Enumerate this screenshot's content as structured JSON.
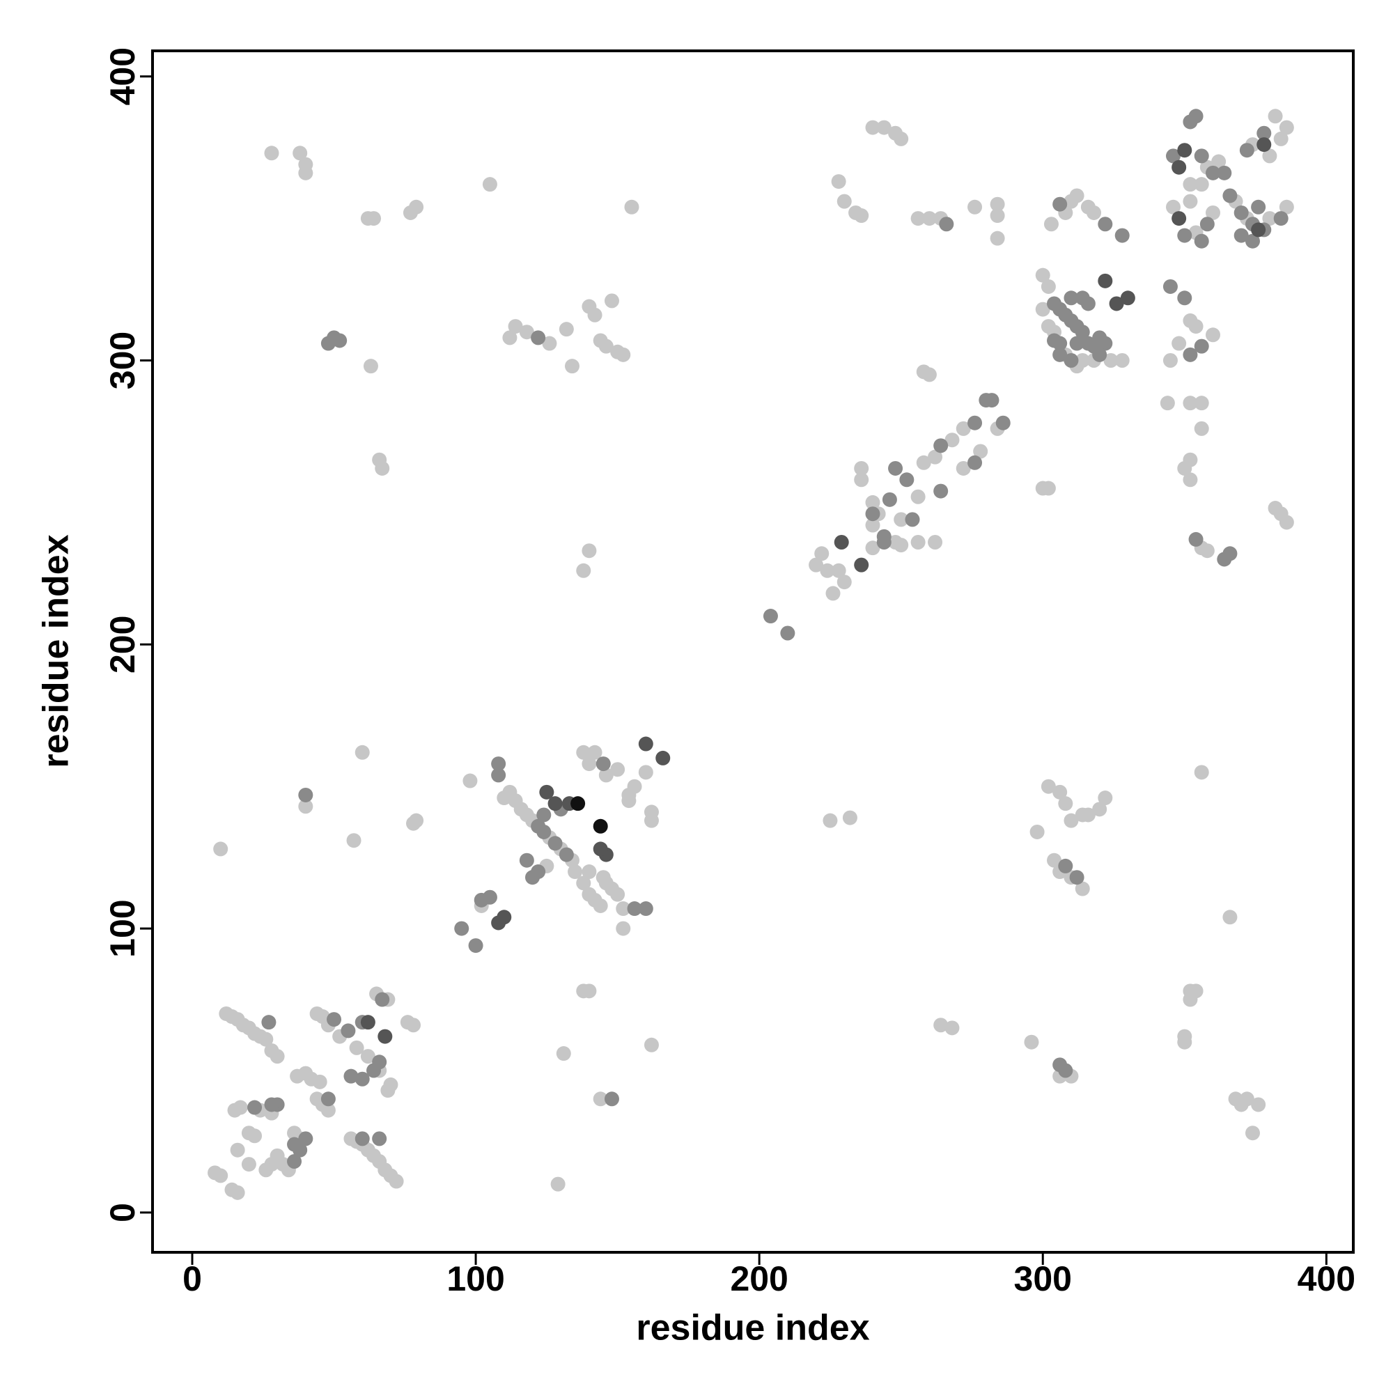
{
  "chart_data": {
    "type": "scatter",
    "x_label": "residue index",
    "y_label": "residue index",
    "xlim": [
      -14,
      409.5
    ],
    "ylim": [
      -14,
      409
    ],
    "xticks": [
      0,
      100,
      200,
      300,
      400
    ],
    "yticks": [
      0,
      100,
      200,
      300,
      400
    ],
    "grid": false,
    "series": [
      {
        "color": "#c6c6c6",
        "x": [
          12,
          14,
          16,
          18,
          20,
          22,
          24,
          26,
          28,
          30,
          44,
          46,
          48,
          52,
          58,
          62,
          66,
          70,
          69,
          65,
          69,
          78,
          76,
          37,
          40,
          42,
          45,
          44,
          46,
          48,
          36,
          38,
          30,
          28,
          26,
          20,
          22,
          15,
          17,
          24,
          28,
          56,
          58,
          60,
          62,
          64,
          66,
          68,
          70,
          72,
          8,
          10,
          14,
          16,
          20,
          16,
          34,
          32,
          10,
          40,
          57,
          60,
          78,
          79,
          28,
          38,
          40,
          40,
          62,
          64,
          63,
          66,
          67,
          77,
          79,
          105,
          155,
          102,
          98,
          110,
          112,
          114,
          116,
          118,
          120,
          126,
          130,
          134,
          138,
          142,
          140,
          146,
          150,
          154,
          156,
          160,
          162,
          162,
          154,
          125,
          135,
          138,
          140,
          142,
          144,
          146,
          148,
          150,
          152,
          152,
          140,
          145,
          138,
          140,
          131,
          129,
          144,
          162,
          138,
          140,
          132,
          140,
          142,
          148,
          144,
          150,
          146,
          152,
          114,
          118,
          126,
          112,
          134,
          220,
          224,
          222,
          226,
          230,
          228,
          240,
          242,
          240,
          248,
          250,
          236,
          236,
          250,
          256,
          262,
          258,
          262,
          268,
          272,
          284,
          278,
          272,
          256,
          240,
          225,
          232,
          264,
          268,
          258,
          260,
          260,
          264,
          256,
          276,
          284,
          284,
          284,
          228,
          230,
          234,
          236,
          244,
          248,
          250,
          240,
          300,
          302,
          300,
          302,
          300,
          302,
          304,
          308,
          312,
          314,
          318,
          324,
          328,
          303,
          308,
          310,
          312,
          316,
          318,
          296,
          298,
          302,
          306,
          308,
          310,
          304,
          306,
          310,
          314,
          314,
          316,
          320,
          322,
          306,
          310,
          352,
          356,
          358,
          362,
          346,
          352,
          354,
          360,
          368,
          372,
          380,
          386,
          374,
          382,
          384,
          386,
          380,
          352,
          354,
          348,
          360,
          345,
          344,
          352,
          356,
          356,
          350,
          352,
          352,
          356,
          358,
          382,
          384,
          386,
          352,
          354,
          352,
          350,
          350,
          366,
          356,
          368,
          370,
          372,
          376,
          374
        ],
        "values": [
          70,
          69,
          68,
          66,
          65,
          63,
          62,
          61,
          57,
          55,
          70,
          69,
          66,
          62,
          58,
          55,
          50,
          45,
          43,
          77,
          75,
          66,
          67,
          48,
          49,
          47,
          46,
          40,
          38,
          36,
          28,
          26,
          20,
          17,
          15,
          28,
          27,
          36,
          37,
          36,
          35,
          26,
          25,
          24,
          22,
          20,
          18,
          15,
          13,
          11,
          14,
          13,
          8,
          7,
          17,
          22,
          15,
          17,
          128,
          143,
          131,
          162,
          137,
          138,
          373,
          373,
          369,
          366,
          350,
          350,
          298,
          265,
          262,
          352,
          354,
          362,
          354,
          108,
          152,
          146,
          148,
          145,
          142,
          140,
          138,
          132,
          128,
          124,
          162,
          162,
          158,
          154,
          156,
          147,
          150,
          155,
          141,
          138,
          145,
          122,
          120,
          116,
          112,
          110,
          108,
          116,
          114,
          112,
          107,
          100,
          120,
          118,
          78,
          78,
          56,
          10,
          40,
          59,
          226,
          233,
          311,
          319,
          316,
          321,
          307,
          303,
          305,
          302,
          312,
          310,
          306,
          308,
          298,
          228,
          226,
          232,
          218,
          222,
          226,
          250,
          246,
          242,
          236,
          235,
          262,
          258,
          244,
          236,
          236,
          264,
          266,
          272,
          276,
          276,
          268,
          262,
          252,
          234,
          138,
          139,
          66,
          65,
          296,
          295,
          350,
          350,
          350,
          354,
          355,
          351,
          343,
          363,
          356,
          352,
          351,
          382,
          380,
          378,
          382,
          255,
          255,
          330,
          326,
          318,
          312,
          310,
          302,
          298,
          300,
          300,
          300,
          300,
          348,
          352,
          356,
          358,
          354,
          352,
          60,
          134,
          150,
          148,
          144,
          138,
          124,
          120,
          118,
          114,
          140,
          140,
          142,
          146,
          48,
          48,
          362,
          362,
          368,
          370,
          354,
          356,
          345,
          352,
          356,
          350,
          350,
          354,
          376,
          386,
          378,
          382,
          372,
          314,
          312,
          306,
          309,
          300,
          285,
          285,
          285,
          276,
          262,
          258,
          265,
          234,
          233,
          248,
          246,
          243,
          78,
          78,
          75,
          62,
          60,
          104,
          155,
          40,
          38,
          40,
          38,
          28
        ]
      },
      {
        "color": "#8a8a8a",
        "x": [
          27,
          50,
          55,
          60,
          66,
          64,
          60,
          56,
          67,
          36,
          38,
          40,
          30,
          28,
          22,
          48,
          60,
          66,
          36,
          40,
          48,
          50,
          52,
          95,
          100,
          102,
          105,
          108,
          108,
          122,
          124,
          128,
          132,
          124,
          130,
          145,
          156,
          160,
          118,
          122,
          120,
          148,
          122,
          204,
          210,
          240,
          246,
          254,
          280,
          282,
          286,
          276,
          264,
          252,
          248,
          244,
          244,
          264,
          276,
          266,
          304,
          306,
          308,
          310,
          312,
          314,
          316,
          318,
          320,
          322,
          306,
          304,
          312,
          316,
          310,
          314,
          306,
          310,
          320,
          306,
          322,
          328,
          308,
          312,
          306,
          308,
          346,
          352,
          354,
          356,
          360,
          364,
          356,
          358,
          350,
          366,
          370,
          374,
          376,
          378,
          384,
          370,
          374,
          372,
          378,
          345,
          350,
          352,
          356,
          354,
          364,
          366
        ],
        "values": [
          67,
          68,
          64,
          67,
          53,
          50,
          47,
          48,
          75,
          24,
          22,
          26,
          38,
          38,
          37,
          40,
          26,
          26,
          18,
          147,
          306,
          308,
          307,
          100,
          94,
          110,
          111,
          154,
          158,
          136,
          134,
          130,
          126,
          140,
          142,
          158,
          107,
          107,
          124,
          120,
          118,
          40,
          308,
          210,
          204,
          246,
          251,
          244,
          286,
          286,
          278,
          264,
          254,
          258,
          262,
          236,
          238,
          270,
          278,
          348,
          320,
          318,
          316,
          314,
          312,
          310,
          306,
          305,
          308,
          306,
          302,
          307,
          306,
          320,
          322,
          322,
          306,
          300,
          302,
          355,
          348,
          344,
          122,
          118,
          52,
          50,
          372,
          384,
          386,
          372,
          366,
          366,
          342,
          348,
          344,
          358,
          352,
          348,
          354,
          346,
          350,
          344,
          342,
          374,
          380,
          326,
          322,
          302,
          305,
          237,
          230,
          232
        ]
      },
      {
        "color": "#555555",
        "x": [
          62,
          68,
          110,
          108,
          125,
          128,
          133,
          146,
          144,
          160,
          166,
          229,
          236,
          322,
          330,
          326,
          350,
          348,
          376,
          378,
          348
        ],
        "values": [
          67,
          62,
          104,
          102,
          148,
          144,
          144,
          126,
          128,
          165,
          160,
          236,
          228,
          328,
          322,
          320,
          374,
          350,
          346,
          376,
          368
        ]
      },
      {
        "color": "#111111",
        "x": [
          136,
          144
        ],
        "values": [
          144,
          136
        ]
      }
    ]
  }
}
